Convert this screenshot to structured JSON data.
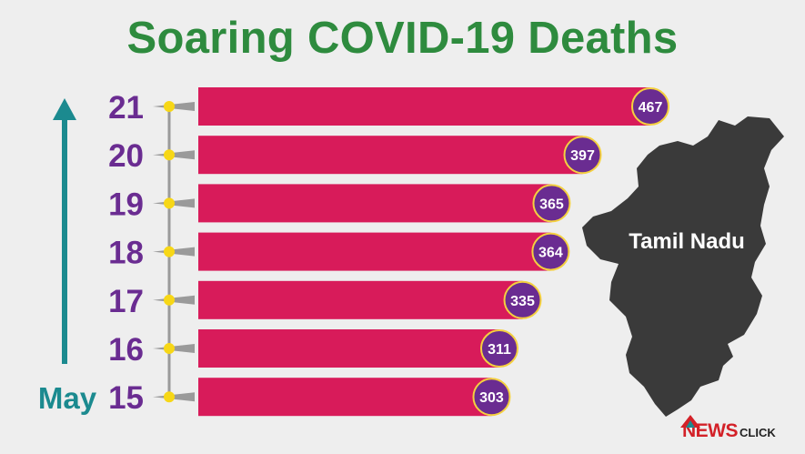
{
  "title": "Soaring COVID-19 Deaths",
  "map_label": "Tamil Nadu",
  "axis_label": "May",
  "logo": {
    "news": "NEWS",
    "click": "CLICK"
  },
  "colors": {
    "title": "#2e8b3e",
    "bar": "#d81b5a",
    "badge": "#6a2c91",
    "badge_ring": "#f4d03f",
    "day_label": "#6a2c91",
    "arrow": "#1b8a8f",
    "map": "#3a3a3a",
    "dot": "#f7d716"
  },
  "chart_data": {
    "type": "bar",
    "orientation": "horizontal",
    "title": "Soaring COVID-19 Deaths",
    "xlabel": "",
    "ylabel": "May",
    "categories": [
      "21",
      "20",
      "19",
      "18",
      "17",
      "16",
      "15"
    ],
    "values": [
      467,
      397,
      365,
      364,
      335,
      311,
      303
    ],
    "data_labels": [
      "467",
      "397",
      "365",
      "364",
      "335",
      "311",
      "303"
    ],
    "xlim": [
      0,
      467
    ],
    "grid": false,
    "legend": "none"
  }
}
